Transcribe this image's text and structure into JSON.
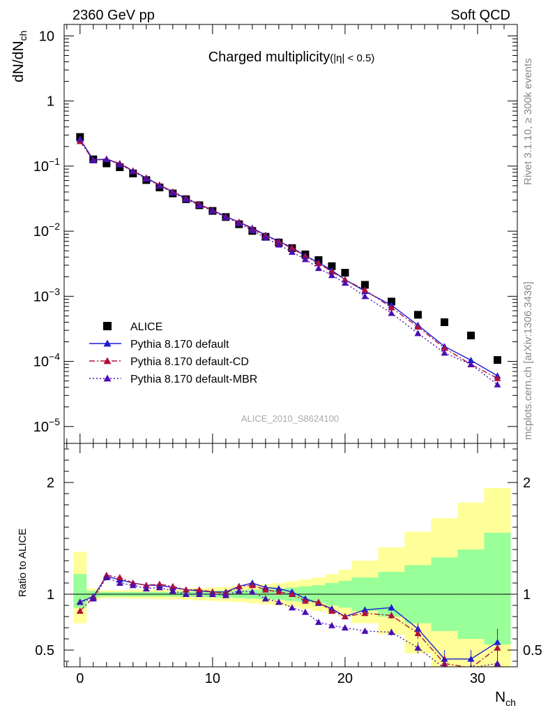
{
  "header": {
    "left": "2360 GeV pp",
    "right": "Soft QCD"
  },
  "side_labels": {
    "rivet": "Rivet 3.1.10, ≥ 300k events",
    "mcplots": "mcplots.cern.ch [arXiv:1306.3436]"
  },
  "chart_data": [
    {
      "type": "scatter",
      "title": "Charged multiplicity",
      "title_suffix": "(|η| < 0.5)",
      "xlabel": "N",
      "xlabel_sub": "ch",
      "ylabel": "dN/dN",
      "ylabel_sub": "ch",
      "yscale": "log",
      "xlim": [
        -1.2,
        33
      ],
      "ylim": [
        5.5e-06,
        15
      ],
      "xticks": [
        0,
        10,
        20,
        30
      ],
      "yticks": [
        {
          "value": 10,
          "label": "10"
        },
        {
          "value": 1,
          "label": "1"
        },
        {
          "value": 0.1,
          "base": "10",
          "exp": "−1"
        },
        {
          "value": 0.01,
          "base": "10",
          "exp": "−2"
        },
        {
          "value": 0.001,
          "base": "10",
          "exp": "−3"
        },
        {
          "value": 0.0001,
          "base": "10",
          "exp": "−4"
        },
        {
          "value": 1e-05,
          "base": "10",
          "exp": "−5"
        }
      ],
      "watermark": "ALICE_2010_S8624100",
      "legend_position": "lower-left",
      "x": [
        0,
        1,
        2,
        3,
        4,
        5,
        6,
        7,
        8,
        9,
        10,
        11,
        12,
        13,
        14,
        15,
        16,
        17,
        18,
        19,
        20,
        21.5,
        23.5,
        25.5,
        27.5,
        29.5,
        31.5
      ],
      "series": [
        {
          "name": "ALICE",
          "color": "#000000",
          "marker": "square",
          "line": "none",
          "values": [
            0.28,
            0.127,
            0.11,
            0.096,
            0.077,
            0.061,
            0.047,
            0.038,
            0.031,
            0.025,
            0.0205,
            0.0165,
            0.0128,
            0.0101,
            0.0082,
            0.0067,
            0.0055,
            0.0044,
            0.0036,
            0.0029,
            0.0023,
            0.0015,
            0.00083,
            0.00052,
            0.0004,
            0.00025,
            0.000105
          ]
        },
        {
          "name": "Pythia 8.170 default",
          "color": "#1a1ad6",
          "marker": "triangle",
          "line": "solid",
          "values": [
            0.26,
            0.125,
            0.128,
            0.108,
            0.084,
            0.066,
            0.051,
            0.04,
            0.032,
            0.0258,
            0.021,
            0.0168,
            0.0138,
            0.0112,
            0.0087,
            0.007,
            0.0056,
            0.0042,
            0.0033,
            0.0025,
            0.0018,
            0.0012,
            0.00073,
            0.00036,
            0.00017,
            0.000104,
            6e-05
          ]
        },
        {
          "name": "Pythia 8.170 default-CD",
          "color": "#b0103a",
          "marker": "triangle",
          "line": "dashdot",
          "values": [
            0.24,
            0.123,
            0.129,
            0.11,
            0.085,
            0.066,
            0.0515,
            0.0405,
            0.0322,
            0.026,
            0.021,
            0.0167,
            0.0138,
            0.0109,
            0.0085,
            0.0068,
            0.0055,
            0.0041,
            0.0032,
            0.0024,
            0.0018,
            0.00125,
            0.00067,
            0.00034,
            0.00016,
            9e-05,
            5.5e-05
          ]
        },
        {
          "name": "Pythia 8.170 default-MBR",
          "color": "#4b0fb0",
          "marker": "triangle",
          "line": "dotted",
          "values": [
            0.26,
            0.122,
            0.127,
            0.106,
            0.083,
            0.064,
            0.05,
            0.039,
            0.031,
            0.025,
            0.0205,
            0.0163,
            0.0132,
            0.0103,
            0.0079,
            0.0062,
            0.0048,
            0.0037,
            0.0027,
            0.0021,
            0.0016,
            0.001,
            0.00055,
            0.00027,
            0.000135,
            9e-05,
            4.4e-05
          ]
        }
      ]
    },
    {
      "type": "scatter",
      "ylabel": "Ratio to ALICE",
      "xlim": [
        -1.2,
        33
      ],
      "ylim": [
        0.35,
        2.35
      ],
      "yticks": [
        0.5,
        1,
        2
      ],
      "reference_line": 1,
      "x": [
        0,
        1,
        2,
        3,
        4,
        5,
        6,
        7,
        8,
        9,
        10,
        11,
        12,
        13,
        14,
        15,
        16,
        17,
        18,
        19,
        20,
        21.5,
        23.5,
        25.5,
        27.5,
        29.5,
        31.5
      ],
      "bins": [
        [
          -0.5,
          0.5
        ],
        [
          0.5,
          1.5
        ],
        [
          1.5,
          2.5
        ],
        [
          2.5,
          3.5
        ],
        [
          3.5,
          4.5
        ],
        [
          4.5,
          5.5
        ],
        [
          5.5,
          6.5
        ],
        [
          6.5,
          7.5
        ],
        [
          7.5,
          8.5
        ],
        [
          8.5,
          9.5
        ],
        [
          9.5,
          10.5
        ],
        [
          10.5,
          11.5
        ],
        [
          11.5,
          12.5
        ],
        [
          12.5,
          13.5
        ],
        [
          13.5,
          14.5
        ],
        [
          14.5,
          15.5
        ],
        [
          15.5,
          16.5
        ],
        [
          16.5,
          17.5
        ],
        [
          17.5,
          18.5
        ],
        [
          18.5,
          19.5
        ],
        [
          19.5,
          20.5
        ],
        [
          20.5,
          22.5
        ],
        [
          22.5,
          24.5
        ],
        [
          24.5,
          26.5
        ],
        [
          26.5,
          28.5
        ],
        [
          28.5,
          30.5
        ],
        [
          30.5,
          32.5
        ]
      ],
      "band_stat": {
        "color": "#99ff99",
        "lo": [
          0.88,
          0.97,
          0.98,
          0.98,
          0.98,
          0.98,
          0.98,
          0.98,
          0.975,
          0.975,
          0.97,
          0.97,
          0.965,
          0.96,
          0.955,
          0.95,
          0.94,
          0.93,
          0.92,
          0.9,
          0.88,
          0.85,
          0.8,
          0.74,
          0.67,
          0.6,
          0.55
        ],
        "hi": [
          1.18,
          1.03,
          1.02,
          1.02,
          1.02,
          1.02,
          1.02,
          1.02,
          1.025,
          1.025,
          1.03,
          1.03,
          1.035,
          1.04,
          1.045,
          1.05,
          1.06,
          1.07,
          1.08,
          1.1,
          1.12,
          1.15,
          1.2,
          1.26,
          1.33,
          1.4,
          1.55
        ]
      },
      "band_total": {
        "color": "#ffff99",
        "lo": [
          0.74,
          0.95,
          0.965,
          0.965,
          0.96,
          0.96,
          0.955,
          0.955,
          0.95,
          0.945,
          0.94,
          0.935,
          0.93,
          0.92,
          0.91,
          0.9,
          0.885,
          0.87,
          0.85,
          0.83,
          0.8,
          0.74,
          0.64,
          0.47,
          0.35,
          0.35,
          0.35
        ],
        "hi": [
          1.38,
          1.05,
          1.035,
          1.035,
          1.04,
          1.04,
          1.045,
          1.045,
          1.05,
          1.055,
          1.06,
          1.065,
          1.07,
          1.08,
          1.09,
          1.1,
          1.115,
          1.13,
          1.15,
          1.18,
          1.22,
          1.3,
          1.42,
          1.56,
          1.68,
          1.82,
          1.95
        ]
      },
      "series": [
        {
          "name": "Pythia 8.170 default",
          "color": "#1a1ad6",
          "line": "solid",
          "values": [
            0.93,
            0.98,
            1.16,
            1.13,
            1.1,
            1.08,
            1.08,
            1.06,
            1.04,
            1.03,
            1.02,
            1.02,
            1.07,
            1.1,
            1.06,
            1.05,
            1.02,
            0.96,
            0.92,
            0.87,
            0.8,
            0.86,
            0.88,
            0.69,
            0.42,
            0.42,
            0.57
          ],
          "err": [
            0.01,
            0.01,
            0.01,
            0.01,
            0.01,
            0.01,
            0.01,
            0.01,
            0.01,
            0.01,
            0.01,
            0.01,
            0.01,
            0.01,
            0.01,
            0.015,
            0.015,
            0.02,
            0.02,
            0.02,
            0.025,
            0.025,
            0.03,
            0.05,
            0.08,
            0.08,
            0.12
          ]
        },
        {
          "name": "Pythia 8.170 default-CD",
          "color": "#b0103a",
          "line": "dashdot",
          "values": [
            0.85,
            0.97,
            1.17,
            1.15,
            1.1,
            1.08,
            1.09,
            1.07,
            1.04,
            1.04,
            1.02,
            1.01,
            1.07,
            1.08,
            1.04,
            1.02,
            1.0,
            0.94,
            0.93,
            0.85,
            0.8,
            0.83,
            0.81,
            0.65,
            0.38,
            0.34,
            0.52
          ],
          "err": [
            0.01,
            0.01,
            0.01,
            0.01,
            0.01,
            0.01,
            0.01,
            0.01,
            0.01,
            0.01,
            0.01,
            0.01,
            0.01,
            0.01,
            0.01,
            0.015,
            0.015,
            0.02,
            0.02,
            0.02,
            0.025,
            0.025,
            0.03,
            0.05,
            0.08,
            0.08,
            0.12
          ]
        },
        {
          "name": "Pythia 8.170 default-MBR",
          "color": "#4b0fb0",
          "line": "dotted",
          "values": [
            0.93,
            0.96,
            1.15,
            1.1,
            1.08,
            1.05,
            1.06,
            1.03,
            1.0,
            1.0,
            1.0,
            0.99,
            1.03,
            1.02,
            0.96,
            0.93,
            0.88,
            0.84,
            0.75,
            0.72,
            0.7,
            0.67,
            0.66,
            0.52,
            0.34,
            0.34,
            0.38
          ],
          "err": [
            0.01,
            0.01,
            0.01,
            0.01,
            0.01,
            0.01,
            0.01,
            0.01,
            0.01,
            0.01,
            0.01,
            0.01,
            0.01,
            0.01,
            0.01,
            0.015,
            0.015,
            0.02,
            0.02,
            0.02,
            0.025,
            0.025,
            0.03,
            0.05,
            0.08,
            0.08,
            0.12
          ]
        }
      ]
    }
  ]
}
